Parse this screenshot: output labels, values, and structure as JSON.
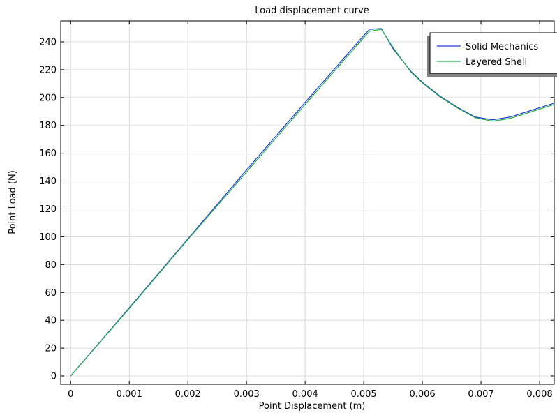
{
  "chart_data": {
    "type": "line",
    "title": "Load displacement curve",
    "xlabel": "Point Displacement (m)",
    "ylabel": "Point Load (N)",
    "xlim": [
      -0.00017,
      0.00825
    ],
    "ylim": [
      -6,
      255
    ],
    "xticks": [
      0,
      0.001,
      0.002,
      0.003,
      0.004,
      0.005,
      0.006,
      0.007,
      0.008
    ],
    "xtick_labels": [
      "0",
      "0.001",
      "0.002",
      "0.003",
      "0.004",
      "0.005",
      "0.006",
      "0.007",
      "0.008"
    ],
    "yticks": [
      0,
      20,
      40,
      60,
      80,
      100,
      120,
      140,
      160,
      180,
      200,
      220,
      240
    ],
    "ytick_labels": [
      "0",
      "20",
      "40",
      "60",
      "80",
      "100",
      "120",
      "140",
      "160",
      "180",
      "200",
      "220",
      "240"
    ],
    "grid": true,
    "legend_position": "top-right",
    "series": [
      {
        "name": "Solid Mechanics",
        "color": "#1f3fd6",
        "x": [
          0,
          0.001,
          0.002,
          0.003,
          0.004,
          0.005,
          0.0051,
          0.0053,
          0.0055,
          0.0058,
          0.006,
          0.0063,
          0.0066,
          0.0069,
          0.0072,
          0.0075,
          0.0078,
          0.00825
        ],
        "y": [
          0,
          49,
          98.5,
          148,
          196.5,
          244.5,
          249,
          249.5,
          235,
          219,
          211,
          201,
          193,
          186,
          184,
          186,
          190,
          196
        ]
      },
      {
        "name": "Layered Shell",
        "color": "#22aa44",
        "x": [
          0,
          0.001,
          0.002,
          0.003,
          0.004,
          0.005,
          0.0051,
          0.0053,
          0.0055,
          0.0058,
          0.006,
          0.0063,
          0.0066,
          0.0069,
          0.0072,
          0.0075,
          0.0078,
          0.00825
        ],
        "y": [
          0,
          48.5,
          98,
          146.5,
          195,
          243,
          247.5,
          249,
          236,
          218.5,
          210.5,
          200.5,
          192.5,
          185.5,
          183,
          185,
          189,
          195
        ]
      }
    ]
  }
}
